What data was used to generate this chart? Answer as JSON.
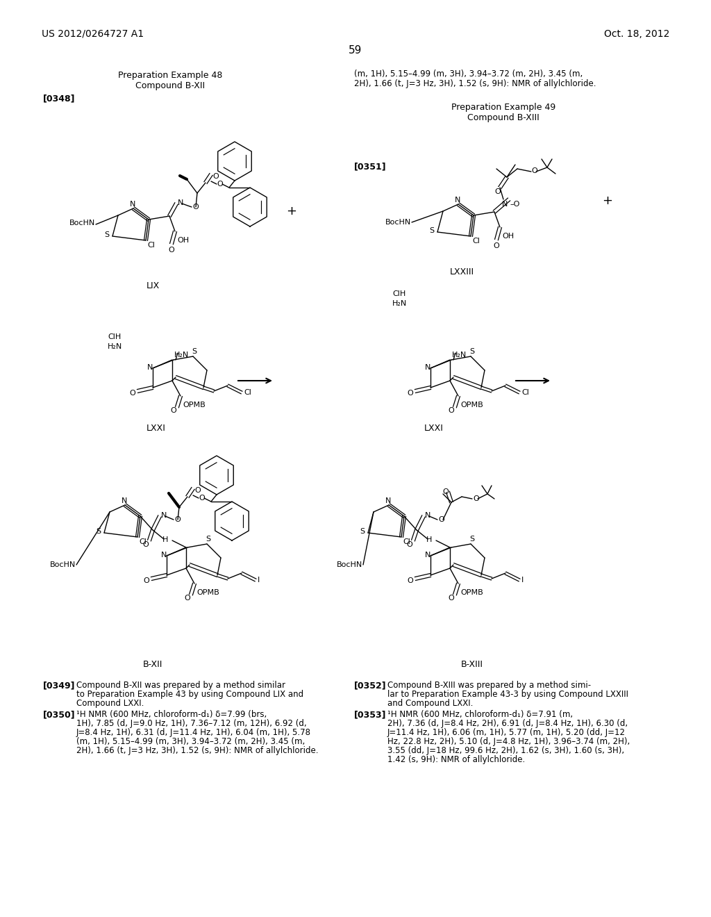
{
  "background_color": "#ffffff",
  "page_number": "59",
  "header_left": "US 2012/0264727 A1",
  "header_right": "Oct. 18, 2012",
  "fig_width": 10.24,
  "fig_height": 13.2,
  "dpi": 100
}
